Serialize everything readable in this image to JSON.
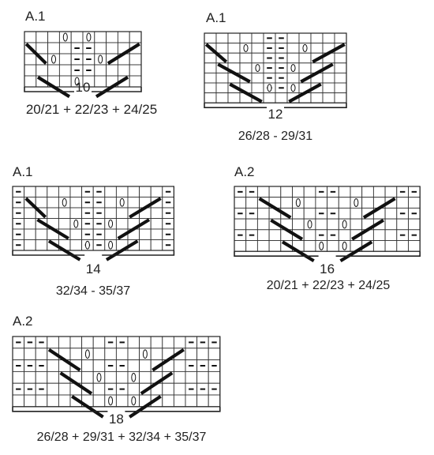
{
  "charts": [
    {
      "title": "A.1",
      "cols": 10,
      "rows": 5,
      "stitch_count": "10",
      "sizes": "20/21 + 22/23 + 24/25",
      "purl": [
        [
          1,
          4
        ],
        [
          1,
          5
        ],
        [
          2,
          4
        ],
        [
          2,
          5
        ],
        [
          3,
          4
        ],
        [
          3,
          5
        ]
      ],
      "yarn_over": [
        [
          0,
          3
        ],
        [
          0,
          5
        ],
        [
          2,
          2
        ],
        [
          2,
          6
        ],
        [
          4,
          4
        ]
      ],
      "k2tog": [
        [
          1,
          0,
          1
        ],
        [
          4,
          1,
          3
        ]
      ],
      "ssk": [
        [
          1,
          7,
          9
        ],
        [
          4,
          6,
          8
        ]
      ]
    },
    {
      "title": "A.1",
      "cols": 12,
      "rows": 7,
      "stitch_count": "12",
      "sizes": "26/28 - 29/31",
      "purl": [
        [
          0,
          5
        ],
        [
          0,
          6
        ],
        [
          1,
          5
        ],
        [
          1,
          6
        ],
        [
          2,
          5
        ],
        [
          2,
          6
        ],
        [
          3,
          5
        ],
        [
          3,
          6
        ],
        [
          4,
          5
        ],
        [
          4,
          6
        ],
        [
          5,
          5
        ],
        [
          5,
          6
        ]
      ],
      "yarn_over": [
        [
          1,
          3
        ],
        [
          1,
          8
        ],
        [
          3,
          4
        ],
        [
          3,
          7
        ],
        [
          5,
          5
        ],
        [
          5,
          7
        ]
      ],
      "k2tog": [
        [
          1,
          0,
          1
        ],
        [
          3,
          1,
          3
        ],
        [
          5,
          2,
          4
        ]
      ],
      "ssk": [
        [
          1,
          9,
          11
        ],
        [
          3,
          8,
          10
        ],
        [
          5,
          7,
          9
        ]
      ]
    },
    {
      "title": "A.1",
      "cols": 14,
      "rows": 6,
      "stitch_count": "14",
      "sizes": "32/34 - 35/37",
      "purl": [
        [
          0,
          0
        ],
        [
          0,
          6
        ],
        [
          0,
          7
        ],
        [
          0,
          13
        ],
        [
          1,
          0
        ],
        [
          1,
          6
        ],
        [
          1,
          7
        ],
        [
          1,
          13
        ],
        [
          2,
          0
        ],
        [
          2,
          6
        ],
        [
          2,
          7
        ],
        [
          2,
          13
        ],
        [
          3,
          0
        ],
        [
          3,
          6
        ],
        [
          3,
          7
        ],
        [
          3,
          13
        ],
        [
          4,
          0
        ],
        [
          4,
          6
        ],
        [
          4,
          7
        ],
        [
          4,
          13
        ],
        [
          5,
          0
        ],
        [
          5,
          6
        ],
        [
          5,
          7
        ],
        [
          5,
          13
        ]
      ],
      "yarn_over": [
        [
          1,
          4
        ],
        [
          1,
          9
        ],
        [
          3,
          5
        ],
        [
          3,
          8
        ],
        [
          5,
          6
        ],
        [
          5,
          8
        ]
      ],
      "k2tog": [
        [
          1,
          1,
          2
        ],
        [
          3,
          2,
          4
        ],
        [
          5,
          3,
          5
        ]
      ],
      "ssk": [
        [
          1,
          10,
          12
        ],
        [
          3,
          9,
          11
        ],
        [
          5,
          8,
          10
        ]
      ]
    },
    {
      "title": "A.2",
      "cols": 16,
      "rows": 6,
      "stitch_count": "16",
      "sizes": "20/21 + 22/23 + 24/25",
      "purl": [
        [
          0,
          0
        ],
        [
          0,
          1
        ],
        [
          0,
          7
        ],
        [
          0,
          8
        ],
        [
          0,
          14
        ],
        [
          0,
          15
        ],
        [
          2,
          0
        ],
        [
          2,
          1
        ],
        [
          2,
          7
        ],
        [
          2,
          8
        ],
        [
          2,
          14
        ],
        [
          2,
          15
        ],
        [
          4,
          0
        ],
        [
          4,
          1
        ],
        [
          4,
          7
        ],
        [
          4,
          8
        ],
        [
          4,
          14
        ],
        [
          4,
          15
        ]
      ],
      "yarn_over": [
        [
          1,
          5
        ],
        [
          1,
          10
        ],
        [
          3,
          6
        ],
        [
          3,
          9
        ],
        [
          5,
          7
        ],
        [
          5,
          9
        ]
      ],
      "k2tog": [
        [
          1,
          2,
          4
        ],
        [
          3,
          3,
          5
        ],
        [
          5,
          4,
          6
        ]
      ],
      "ssk": [
        [
          1,
          11,
          13
        ],
        [
          3,
          10,
          12
        ],
        [
          5,
          9,
          11
        ]
      ]
    },
    {
      "title": "A.2",
      "cols": 18,
      "rows": 6,
      "stitch_count": "18",
      "sizes": "26/28 + 29/31 + 32/34 + 35/37",
      "purl": [
        [
          0,
          0
        ],
        [
          0,
          1
        ],
        [
          0,
          2
        ],
        [
          0,
          8
        ],
        [
          0,
          9
        ],
        [
          0,
          15
        ],
        [
          0,
          16
        ],
        [
          0,
          17
        ],
        [
          2,
          0
        ],
        [
          2,
          1
        ],
        [
          2,
          2
        ],
        [
          2,
          8
        ],
        [
          2,
          9
        ],
        [
          2,
          15
        ],
        [
          2,
          16
        ],
        [
          2,
          17
        ],
        [
          4,
          0
        ],
        [
          4,
          1
        ],
        [
          4,
          2
        ],
        [
          4,
          8
        ],
        [
          4,
          9
        ],
        [
          4,
          15
        ],
        [
          4,
          16
        ],
        [
          4,
          17
        ]
      ],
      "yarn_over": [
        [
          1,
          6
        ],
        [
          1,
          11
        ],
        [
          3,
          7
        ],
        [
          3,
          10
        ],
        [
          5,
          8
        ],
        [
          5,
          10
        ]
      ],
      "k2tog": [
        [
          1,
          3,
          5
        ],
        [
          3,
          4,
          6
        ],
        [
          5,
          5,
          7
        ]
      ],
      "ssk": [
        [
          1,
          12,
          14
        ],
        [
          3,
          11,
          13
        ],
        [
          5,
          10,
          12
        ]
      ]
    }
  ]
}
